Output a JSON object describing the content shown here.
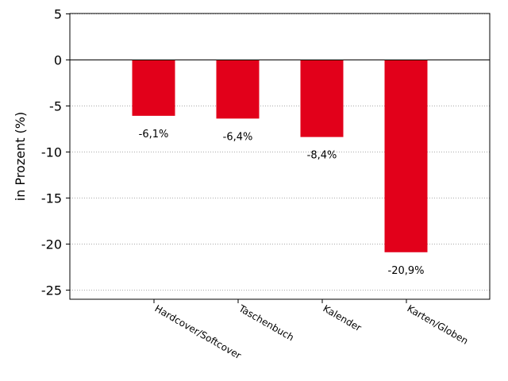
{
  "chart_data": {
    "type": "bar",
    "categories": [
      "Hardcover/Softcover",
      "Taschenbuch",
      "Kalender",
      "Karten/Globen"
    ],
    "values": [
      -6.1,
      -6.4,
      -8.4,
      -20.9
    ],
    "data_labels": [
      "-6,1%",
      "-6,4%",
      "-8,4%",
      "-20,9%"
    ],
    "ylabel": "in Prozent (%)",
    "xlabel": "",
    "title": "",
    "ylim": [
      -26,
      5
    ],
    "yticks": [
      5,
      0,
      -5,
      -10,
      -15,
      -20,
      -25
    ],
    "ytick_labels": [
      "5",
      "0",
      "-5",
      "-10",
      "-15",
      "-20",
      "-25"
    ],
    "grid": "horizontal dotted",
    "bar_color": "#e2001a"
  }
}
